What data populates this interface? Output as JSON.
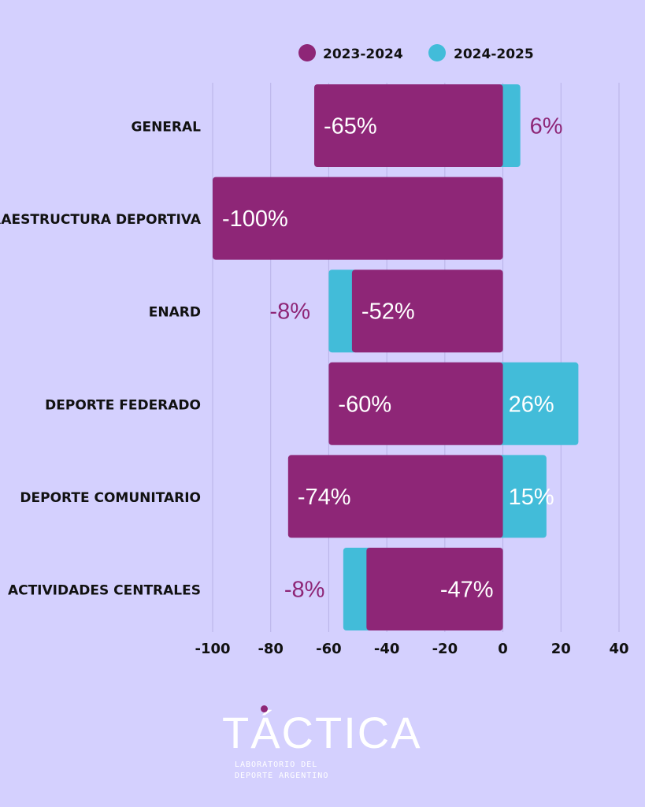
{
  "chart_data": {
    "type": "bar",
    "orientation": "horizontal",
    "stacked": true,
    "categories": [
      "GENERAL",
      "INFRAESTRUCTURA DEPORTIVA",
      "ENARD",
      "DEPORTE FEDERADO",
      "DEPORTE COMUNITARIO",
      "ACTIVIDADES CENTRALES"
    ],
    "series": [
      {
        "name": "2023-2024",
        "color": "#8e2677",
        "values": [
          -65,
          -100,
          -52,
          -60,
          -74,
          -47
        ],
        "labels": [
          "-65%",
          "-100%",
          "-52%",
          "-60%",
          "-74%",
          "-47%"
        ]
      },
      {
        "name": "2024-2025",
        "color": "#42bcd9",
        "values": [
          6,
          0,
          -8,
          26,
          15,
          -8
        ],
        "labels": [
          "6%",
          "",
          "-8%",
          "26%",
          "15%",
          "-8%"
        ]
      }
    ],
    "xlim": [
      -100,
      40
    ],
    "xticks": [
      "-100",
      "-80",
      "-60",
      "-40",
      "-20",
      "0",
      "20",
      "40"
    ],
    "grid": true,
    "legend_position": "top-right"
  },
  "logo": {
    "name": "TÁCTICA",
    "tagline_1": "LABORATORIO DEL",
    "tagline_2": "DEPORTE ARGENTINO"
  }
}
